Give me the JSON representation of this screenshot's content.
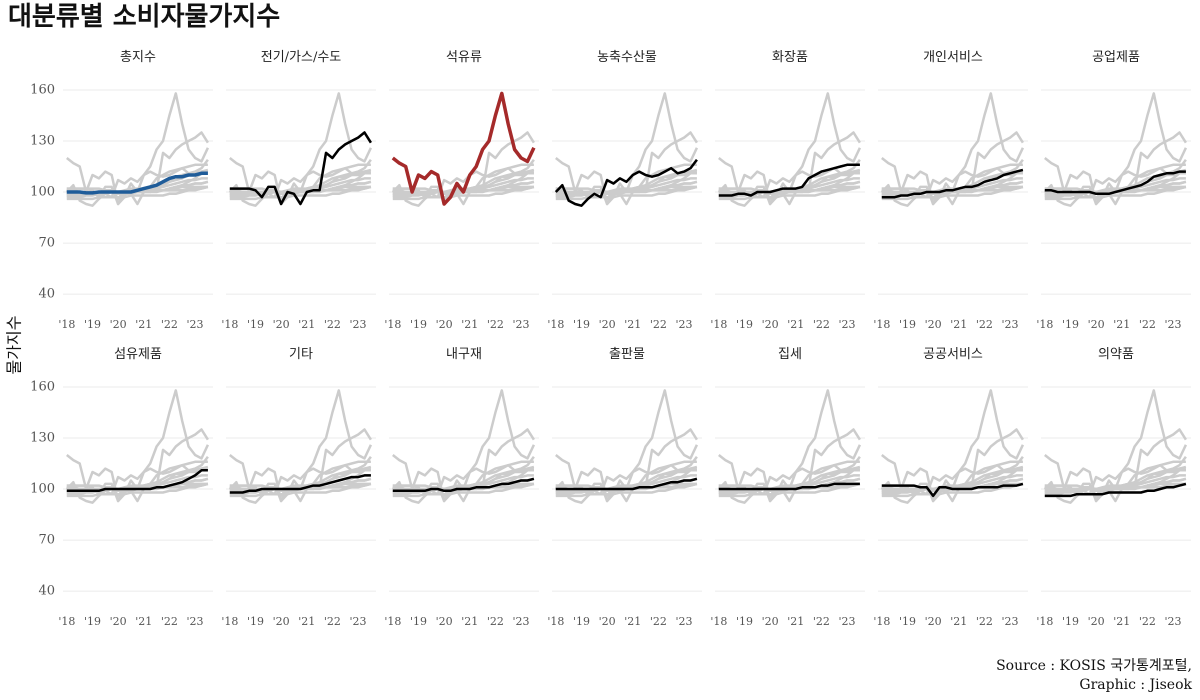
{
  "chart_data": {
    "type": "line",
    "title": "대분류별 소비자물가지수",
    "y_label": "물가지수",
    "caption": [
      "Source : KOSIS 국가통계포털,",
      "Graphic : Jiseok"
    ],
    "context_color": "#cccccc",
    "grid": true,
    "xlim": [
      2017.85,
      2023.7
    ],
    "ylim": [
      33,
      165
    ],
    "xticks": [
      {
        "value": 2018,
        "label": "'18"
      },
      {
        "value": 2019,
        "label": "'19"
      },
      {
        "value": 2020,
        "label": "'20"
      },
      {
        "value": 2021,
        "label": "'21"
      },
      {
        "value": 2022,
        "label": "'22"
      },
      {
        "value": 2023,
        "label": "'23"
      }
    ],
    "yticks": [
      40,
      70,
      100,
      130,
      160
    ],
    "x": [
      2018,
      2018.25,
      2018.5,
      2018.75,
      2019,
      2019.25,
      2019.5,
      2019.75,
      2020,
      2020.25,
      2020.5,
      2020.75,
      2021,
      2021.25,
      2021.5,
      2021.75,
      2022,
      2022.25,
      2022.5,
      2022.75,
      2023,
      2023.25,
      2023.5
    ],
    "series": [
      {
        "name": "총지수",
        "color": "#1f5c99",
        "values": [
          100,
          100,
          100,
          99.5,
          99.5,
          100,
          100,
          100,
          100,
          100,
          100,
          101,
          102,
          103,
          104,
          106,
          108,
          109,
          109,
          110,
          110,
          111,
          111
        ]
      },
      {
        "name": "전기/가스/수도",
        "color": "#000000",
        "values": [
          102,
          102,
          102,
          102,
          101,
          97,
          103,
          103,
          93,
          100,
          99,
          93,
          100,
          101,
          101,
          123,
          120,
          125,
          128,
          130,
          132,
          135,
          129
        ]
      },
      {
        "name": "석유류",
        "color": "#a52a2a",
        "values": [
          120,
          117,
          115,
          100,
          110,
          108,
          112,
          110,
          93,
          97,
          105,
          100,
          110,
          115,
          125,
          130,
          145,
          158,
          140,
          125,
          120,
          118,
          126
        ]
      },
      {
        "name": "농축수산물",
        "color": "#000000",
        "values": [
          100,
          104,
          95,
          93,
          92,
          96,
          99,
          97,
          107,
          105,
          108,
          106,
          110,
          112,
          110,
          109,
          110,
          112,
          114,
          111,
          112,
          114,
          119
        ]
      },
      {
        "name": "화장품",
        "color": "#000000",
        "values": [
          98,
          98,
          98,
          99,
          99,
          98,
          100,
          100,
          100,
          101,
          102,
          102,
          102,
          103,
          108,
          110,
          112,
          113,
          114,
          115,
          116,
          116,
          116
        ]
      },
      {
        "name": "개인서비스",
        "color": "#000000",
        "values": [
          97,
          97,
          97,
          98,
          98,
          99,
          99,
          100,
          100,
          100,
          101,
          101,
          102,
          103,
          103,
          104,
          106,
          107,
          108,
          110,
          111,
          112,
          113
        ]
      },
      {
        "name": "공업제품",
        "color": "#000000",
        "values": [
          101,
          101,
          100,
          100,
          100,
          100,
          100,
          100,
          99,
          99,
          99,
          100,
          101,
          102,
          103,
          104,
          106,
          109,
          110,
          111,
          111,
          112,
          112
        ]
      },
      {
        "name": "섬유제품",
        "color": "#000000",
        "values": [
          99,
          99,
          99,
          99,
          99,
          99,
          100,
          100,
          100,
          100,
          100,
          100,
          100,
          100,
          101,
          101,
          102,
          103,
          104,
          106,
          108,
          111,
          111
        ]
      },
      {
        "name": "기타",
        "color": "#000000",
        "values": [
          98,
          98,
          98,
          99,
          99,
          100,
          100,
          100,
          100,
          100,
          100,
          100,
          101,
          102,
          102,
          103,
          104,
          105,
          106,
          107,
          107,
          108,
          108
        ]
      },
      {
        "name": "내구재",
        "color": "#000000",
        "values": [
          99,
          99,
          99,
          99,
          99,
          99,
          100,
          100,
          99,
          99,
          100,
          100,
          100,
          101,
          101,
          101,
          102,
          103,
          103,
          104,
          105,
          105,
          106
        ]
      },
      {
        "name": "출판물",
        "color": "#000000",
        "values": [
          100,
          100,
          100,
          100,
          100,
          100,
          100,
          100,
          100,
          100,
          100,
          100,
          100,
          101,
          101,
          101,
          102,
          103,
          104,
          104,
          105,
          105,
          106
        ]
      },
      {
        "name": "집세",
        "color": "#000000",
        "values": [
          100,
          100,
          100,
          100,
          100,
          100,
          100,
          100,
          100,
          100,
          100,
          100,
          100,
          101,
          101,
          101,
          102,
          102,
          103,
          103,
          103,
          103,
          103
        ]
      },
      {
        "name": "공공서비스",
        "color": "#000000",
        "values": [
          102,
          102,
          102,
          102,
          102,
          102,
          101,
          101,
          96,
          101,
          101,
          100,
          100,
          100,
          100,
          101,
          101,
          101,
          101,
          102,
          102,
          102,
          103
        ]
      },
      {
        "name": "의약품",
        "color": "#000000",
        "values": [
          96,
          96,
          96,
          96,
          96,
          97,
          97,
          97,
          97,
          97,
          98,
          98,
          98,
          98,
          98,
          98,
          99,
          99,
          100,
          101,
          101,
          102,
          103
        ]
      }
    ]
  }
}
